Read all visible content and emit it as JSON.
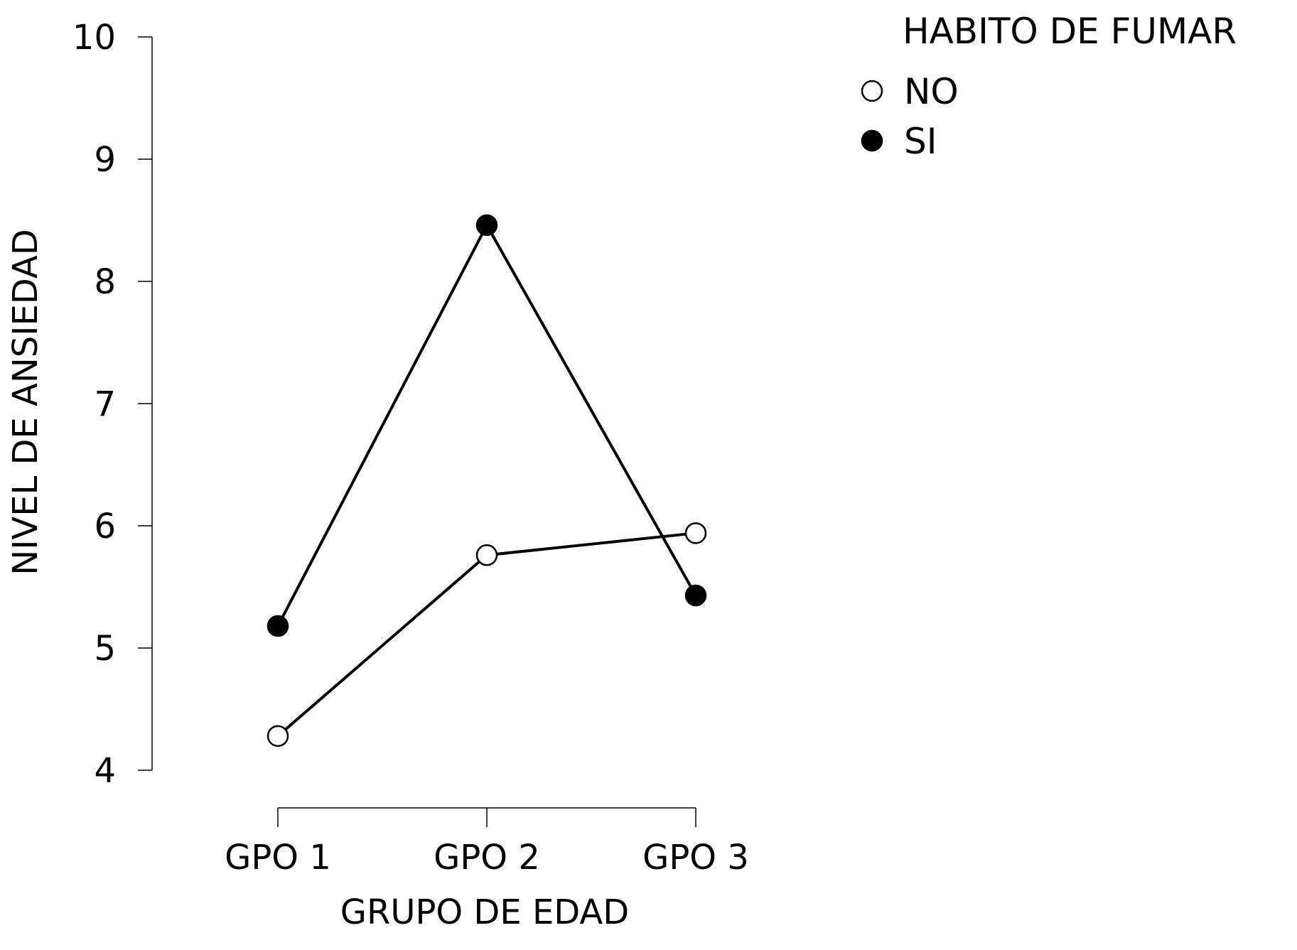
{
  "chart_data": {
    "type": "line",
    "title": "",
    "xlabel": "GRUPO DE EDAD",
    "ylabel": "NIVEL DE ANSIEDAD",
    "categories": [
      "GPO 1",
      "GPO 2",
      "GPO 3"
    ],
    "yticks": [
      4,
      5,
      6,
      7,
      8,
      9,
      10
    ],
    "ylim": [
      4,
      10
    ],
    "grid": false,
    "legend": {
      "title": "HABITO DE FUMAR",
      "placement": "top-right"
    },
    "series": [
      {
        "name": "NO",
        "marker": "open-circle",
        "values": [
          4.28,
          5.76,
          5.94
        ]
      },
      {
        "name": "SI",
        "marker": "filled-circle",
        "values": [
          5.18,
          8.46,
          5.43
        ]
      }
    ],
    "colors": {
      "line": "#000000",
      "marker_fill_open": "#ffffff",
      "marker_fill_solid": "#000000"
    }
  }
}
